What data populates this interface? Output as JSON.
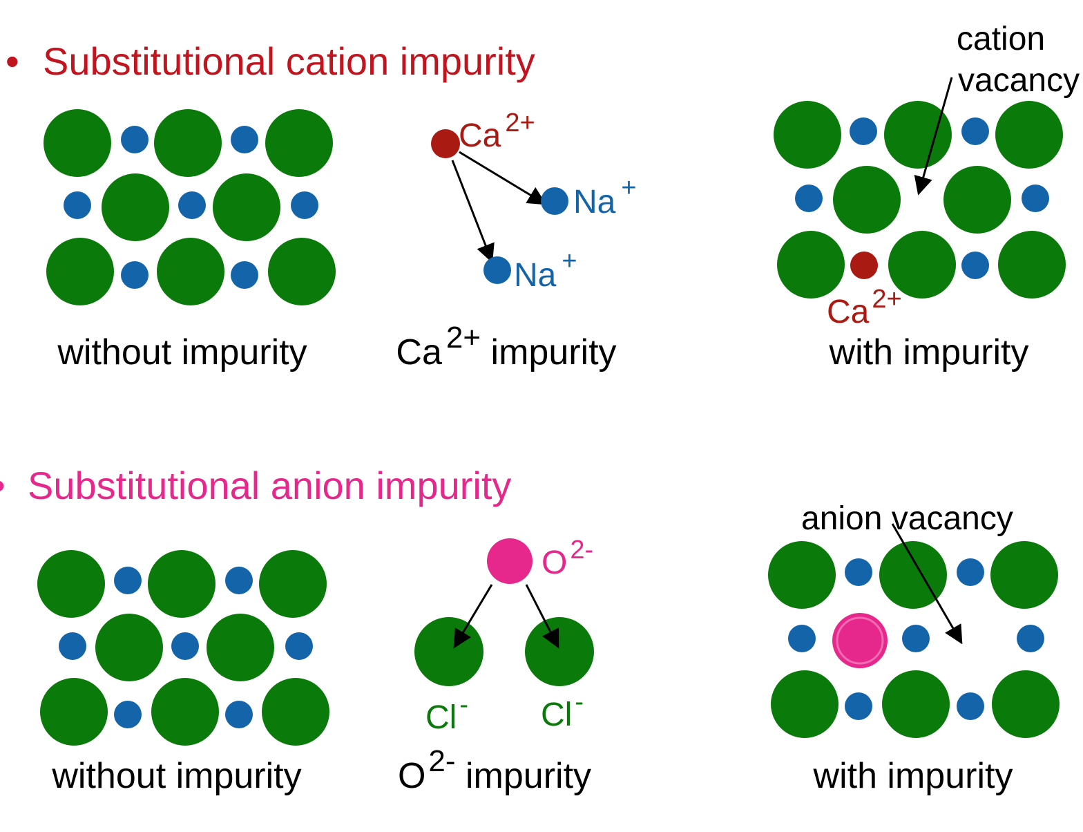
{
  "colors": {
    "cation_heading": "#c0141e",
    "anion_heading": "#e6288c",
    "chloride": "#0a7a0a",
    "sodium": "#1464aa",
    "calcium": "#a81a12",
    "oxide": "#e6288c",
    "text": "#000000"
  },
  "cation_section": {
    "bullet": "•",
    "heading": "Substitutional cation impurity",
    "caption_without": "without impurity",
    "caption_middle_base": "Ca",
    "caption_middle_sup": "2+",
    "caption_middle_rest": " impurity",
    "caption_with": "with impurity",
    "ca_label_base": "Ca",
    "ca_label_sup": "2+",
    "na_label_base": "Na",
    "na_label_sup": "+",
    "vacancy_label_line1": "cation",
    "vacancy_label_line2": "vacancy"
  },
  "anion_section": {
    "bullet": "•",
    "heading": "Substitutional anion impurity",
    "caption_without": "without impurity",
    "caption_middle_base": "O",
    "caption_middle_sup": "2-",
    "caption_middle_rest": " impurity",
    "caption_with": "with impurity",
    "o_label_base": "O",
    "o_label_sup": "2-",
    "cl_label_base": "Cl",
    "cl_label_sup": "-",
    "vacancy_label": "anion vacancy"
  }
}
